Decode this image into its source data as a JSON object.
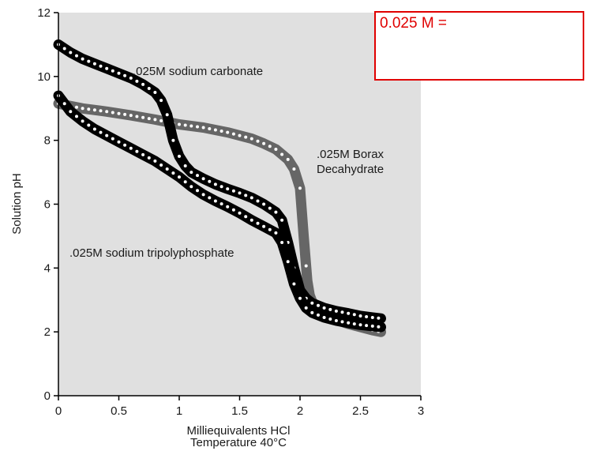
{
  "note_box": {
    "text": "0.025 M ="
  },
  "colors": {
    "plot_background": "#e0e0e0",
    "black_band": "#000000",
    "gray_band": "#666666",
    "dots": "#ffffff",
    "note_border": "#e00000",
    "note_text": "#e00000"
  },
  "chart_data": {
    "type": "line",
    "title": "",
    "xlabel": "Milliequivalents HCl",
    "xlabel_line2": "Temperature  40°C",
    "ylabel": "Solution pH",
    "xlim": [
      0,
      3
    ],
    "ylim": [
      0,
      12
    ],
    "xticks": [
      0,
      0.5,
      1,
      1.5,
      2,
      2.5,
      3
    ],
    "xtick_labels": [
      "0",
      "0.5",
      "1",
      "1.5",
      "2",
      "2.5",
      "3"
    ],
    "yticks": [
      0,
      2,
      4,
      6,
      8,
      10,
      12
    ],
    "ytick_labels": [
      "0",
      "2",
      "4",
      "6",
      "8",
      "10",
      "12"
    ],
    "grid": false,
    "series": [
      {
        "name": ".025M sodium carbonate",
        "color": "#000000",
        "x": [
          0,
          0.1,
          0.2,
          0.3,
          0.4,
          0.5,
          0.6,
          0.7,
          0.8,
          0.85,
          0.9,
          0.95,
          1.0,
          1.05,
          1.1,
          1.2,
          1.3,
          1.4,
          1.5,
          1.6,
          1.7,
          1.8,
          1.85,
          1.9,
          1.95,
          2.0,
          2.05,
          2.1,
          2.2,
          2.3,
          2.4,
          2.5,
          2.6,
          2.67
        ],
        "y": [
          11.0,
          10.75,
          10.55,
          10.4,
          10.25,
          10.1,
          9.95,
          9.75,
          9.5,
          9.25,
          8.8,
          8.0,
          7.5,
          7.2,
          7.0,
          6.8,
          6.62,
          6.48,
          6.35,
          6.2,
          6.0,
          5.75,
          5.5,
          4.8,
          4.0,
          3.3,
          3.05,
          2.9,
          2.75,
          2.65,
          2.58,
          2.5,
          2.45,
          2.42
        ]
      },
      {
        "name": ".025M sodium tripolyphosphate",
        "color": "#000000",
        "x": [
          0,
          0.1,
          0.2,
          0.3,
          0.4,
          0.5,
          0.6,
          0.7,
          0.8,
          0.9,
          1.0,
          1.1,
          1.2,
          1.3,
          1.4,
          1.5,
          1.6,
          1.7,
          1.8,
          1.85,
          1.9,
          1.95,
          2.0,
          2.05,
          2.1,
          2.2,
          2.3,
          2.4,
          2.5,
          2.6,
          2.67
        ],
        "y": [
          9.4,
          8.9,
          8.6,
          8.35,
          8.15,
          7.95,
          7.75,
          7.55,
          7.35,
          7.1,
          6.85,
          6.55,
          6.3,
          6.1,
          5.92,
          5.72,
          5.5,
          5.3,
          5.1,
          4.8,
          4.2,
          3.5,
          3.05,
          2.75,
          2.6,
          2.45,
          2.35,
          2.28,
          2.22,
          2.18,
          2.15
        ]
      },
      {
        "name": ".025M Borax Decahydrate",
        "name_line1": ".025M Borax",
        "name_line2": "Decahydrate",
        "color": "#666666",
        "x": [
          0,
          0.2,
          0.4,
          0.6,
          0.8,
          1.0,
          1.2,
          1.4,
          1.6,
          1.7,
          1.8,
          1.9,
          1.95,
          2.0,
          2.03,
          2.06,
          2.08,
          2.1,
          2.15,
          2.2,
          2.3,
          2.4,
          2.5,
          2.6,
          2.67
        ],
        "y": [
          9.15,
          9.0,
          8.9,
          8.78,
          8.65,
          8.5,
          8.4,
          8.25,
          8.05,
          7.9,
          7.72,
          7.4,
          7.1,
          6.5,
          5.0,
          3.6,
          3.15,
          2.95,
          2.72,
          2.55,
          2.38,
          2.25,
          2.15,
          2.05,
          2.0
        ]
      }
    ],
    "legend": "labels placed next to curves"
  }
}
